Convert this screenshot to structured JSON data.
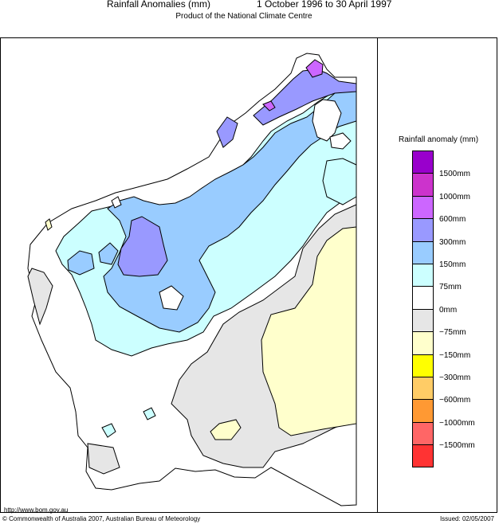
{
  "header": {
    "title": "Rainfall Anomalies (mm)",
    "period": "1 October 1996 to 30 April 1997",
    "subtitle": "Product of the National Climate Centre"
  },
  "legend": {
    "title": "Rainfall anomaly (mm)",
    "colors": [
      "#9900cc",
      "#cc33cc",
      "#cc66ff",
      "#9999ff",
      "#99ccff",
      "#ccffff",
      "#ffffff",
      "#e6e6e6",
      "#ffffcc",
      "#ffff00",
      "#ffcc66",
      "#ff9933",
      "#ff6666",
      "#ff3333"
    ],
    "labels": [
      "1500mm",
      "1000mm",
      "600mm",
      "300mm",
      "150mm",
      "75mm",
      "0mm",
      "−75mm",
      "−150mm",
      "−300mm",
      "−600mm",
      "−1000mm",
      "−1500mm"
    ]
  },
  "footer": {
    "url": "http://www.bom.gov.au",
    "copyright": "© Commonwealth of Australia 2007, Australian Bureau of Meteorology",
    "issued": "Issued: 02/05/2007"
  }
}
